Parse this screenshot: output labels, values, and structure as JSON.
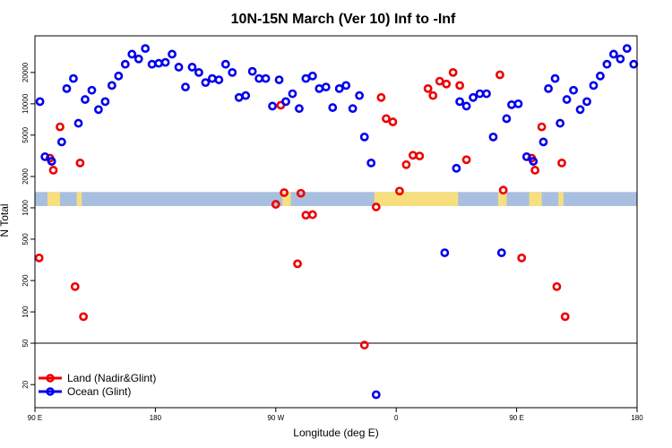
{
  "chart_data": {
    "type": "scatter",
    "title": "10N-15N March (Ver 10)   Inf to -Inf",
    "xlabel": "Longitude (deg E)",
    "ylabel": "N Total",
    "y_scale": "log",
    "xlim": [
      0,
      360
    ],
    "ylim": [
      12,
      45000
    ],
    "x_ticks": [
      {
        "value": 0,
        "label": "90 E"
      },
      {
        "value": 72,
        "label": "180"
      },
      {
        "value": 144,
        "label": "90 W"
      },
      {
        "value": 216,
        "label": "0"
      },
      {
        "value": 288,
        "label": "90 E"
      },
      {
        "value": 360,
        "label": "180"
      }
    ],
    "y_ticks": [
      20,
      50,
      100,
      200,
      500,
      1000,
      2000,
      5000,
      10000,
      20000
    ],
    "reference_line_y": 50,
    "map_strip": {
      "ocean_color": "#a9bfe0",
      "land_color": "#f7df80",
      "y_min": 1040,
      "y_max": 1420
    },
    "legend_position": "bottom-left",
    "series": [
      {
        "name": "Land (Nadir&Glint)",
        "color": "#ee0000",
        "points": [
          {
            "x": 2.5,
            "y": 330
          },
          {
            "x": 9,
            "y": 3000
          },
          {
            "x": 11,
            "y": 2300
          },
          {
            "x": 15,
            "y": 6000
          },
          {
            "x": 24,
            "y": 175
          },
          {
            "x": 27,
            "y": 2700
          },
          {
            "x": 29,
            "y": 90
          },
          {
            "x": 144,
            "y": 1080
          },
          {
            "x": 147,
            "y": 9700
          },
          {
            "x": 149,
            "y": 1400
          },
          {
            "x": 157,
            "y": 290
          },
          {
            "x": 159,
            "y": 1380
          },
          {
            "x": 162,
            "y": 850
          },
          {
            "x": 166,
            "y": 860
          },
          {
            "x": 197,
            "y": 48
          },
          {
            "x": 204,
            "y": 1020
          },
          {
            "x": 207,
            "y": 11500
          },
          {
            "x": 210,
            "y": 7200
          },
          {
            "x": 214,
            "y": 6700
          },
          {
            "x": 218,
            "y": 1450
          },
          {
            "x": 222,
            "y": 2600
          },
          {
            "x": 226,
            "y": 3200
          },
          {
            "x": 230,
            "y": 3150
          },
          {
            "x": 235,
            "y": 14000
          },
          {
            "x": 238,
            "y": 12000
          },
          {
            "x": 242,
            "y": 16500
          },
          {
            "x": 246,
            "y": 15500
          },
          {
            "x": 250,
            "y": 20000
          },
          {
            "x": 254,
            "y": 15000
          },
          {
            "x": 258,
            "y": 2900
          },
          {
            "x": 278,
            "y": 19000
          },
          {
            "x": 280,
            "y": 1480
          },
          {
            "x": 291,
            "y": 330
          },
          {
            "x": 297,
            "y": 3000
          },
          {
            "x": 299,
            "y": 2300
          },
          {
            "x": 303,
            "y": 6000
          },
          {
            "x": 312,
            "y": 175
          },
          {
            "x": 315,
            "y": 2700
          },
          {
            "x": 317,
            "y": 90
          }
        ]
      },
      {
        "name": "Ocean (Glint)",
        "color": "#0000ee",
        "points": [
          {
            "x": 3,
            "y": 10500
          },
          {
            "x": 6,
            "y": 3100
          },
          {
            "x": 10,
            "y": 2800
          },
          {
            "x": 16,
            "y": 4300
          },
          {
            "x": 19,
            "y": 14000
          },
          {
            "x": 23,
            "y": 17500
          },
          {
            "x": 26,
            "y": 6500
          },
          {
            "x": 30,
            "y": 11000
          },
          {
            "x": 34,
            "y": 13500
          },
          {
            "x": 38,
            "y": 8800
          },
          {
            "x": 42,
            "y": 10500
          },
          {
            "x": 46,
            "y": 15000
          },
          {
            "x": 50,
            "y": 18500
          },
          {
            "x": 54,
            "y": 24000
          },
          {
            "x": 58,
            "y": 30000
          },
          {
            "x": 62,
            "y": 27000
          },
          {
            "x": 66,
            "y": 34000
          },
          {
            "x": 70,
            "y": 24000
          },
          {
            "x": 74,
            "y": 24500
          },
          {
            "x": 78,
            "y": 25000
          },
          {
            "x": 82,
            "y": 30000
          },
          {
            "x": 86,
            "y": 22500
          },
          {
            "x": 90,
            "y": 14500
          },
          {
            "x": 94,
            "y": 22500
          },
          {
            "x": 98,
            "y": 20000
          },
          {
            "x": 102,
            "y": 16000
          },
          {
            "x": 106,
            "y": 17500
          },
          {
            "x": 110,
            "y": 17000
          },
          {
            "x": 114,
            "y": 24000
          },
          {
            "x": 118,
            "y": 20000
          },
          {
            "x": 122,
            "y": 11500
          },
          {
            "x": 126,
            "y": 12000
          },
          {
            "x": 130,
            "y": 20500
          },
          {
            "x": 134,
            "y": 17500
          },
          {
            "x": 138,
            "y": 17500
          },
          {
            "x": 142,
            "y": 9500
          },
          {
            "x": 146,
            "y": 17000
          },
          {
            "x": 150,
            "y": 10500
          },
          {
            "x": 154,
            "y": 12500
          },
          {
            "x": 158,
            "y": 9000
          },
          {
            "x": 162,
            "y": 17500
          },
          {
            "x": 166,
            "y": 18500
          },
          {
            "x": 170,
            "y": 14000
          },
          {
            "x": 174,
            "y": 14500
          },
          {
            "x": 178,
            "y": 9200
          },
          {
            "x": 182,
            "y": 14000
          },
          {
            "x": 186,
            "y": 15000
          },
          {
            "x": 190,
            "y": 9000
          },
          {
            "x": 194,
            "y": 12000
          },
          {
            "x": 197,
            "y": 4800
          },
          {
            "x": 201,
            "y": 2700
          },
          {
            "x": 204,
            "y": 16
          },
          {
            "x": 245,
            "y": 370
          },
          {
            "x": 252,
            "y": 2400
          },
          {
            "x": 254,
            "y": 10500
          },
          {
            "x": 258,
            "y": 9500
          },
          {
            "x": 262,
            "y": 11500
          },
          {
            "x": 266,
            "y": 12500
          },
          {
            "x": 270,
            "y": 12500
          },
          {
            "x": 274,
            "y": 4800
          },
          {
            "x": 279,
            "y": 370
          },
          {
            "x": 282,
            "y": 7200
          },
          {
            "x": 285,
            "y": 9800
          },
          {
            "x": 289,
            "y": 10000
          },
          {
            "x": 294,
            "y": 3100
          },
          {
            "x": 298,
            "y": 2800
          },
          {
            "x": 304,
            "y": 4300
          },
          {
            "x": 307,
            "y": 14000
          },
          {
            "x": 311,
            "y": 17500
          },
          {
            "x": 314,
            "y": 6500
          },
          {
            "x": 318,
            "y": 11000
          },
          {
            "x": 322,
            "y": 13500
          },
          {
            "x": 326,
            "y": 8800
          },
          {
            "x": 330,
            "y": 10500
          },
          {
            "x": 334,
            "y": 15000
          },
          {
            "x": 338,
            "y": 18500
          },
          {
            "x": 342,
            "y": 24000
          },
          {
            "x": 346,
            "y": 30000
          },
          {
            "x": 350,
            "y": 27000
          },
          {
            "x": 354,
            "y": 34000
          },
          {
            "x": 358,
            "y": 24000
          }
        ]
      }
    ]
  }
}
